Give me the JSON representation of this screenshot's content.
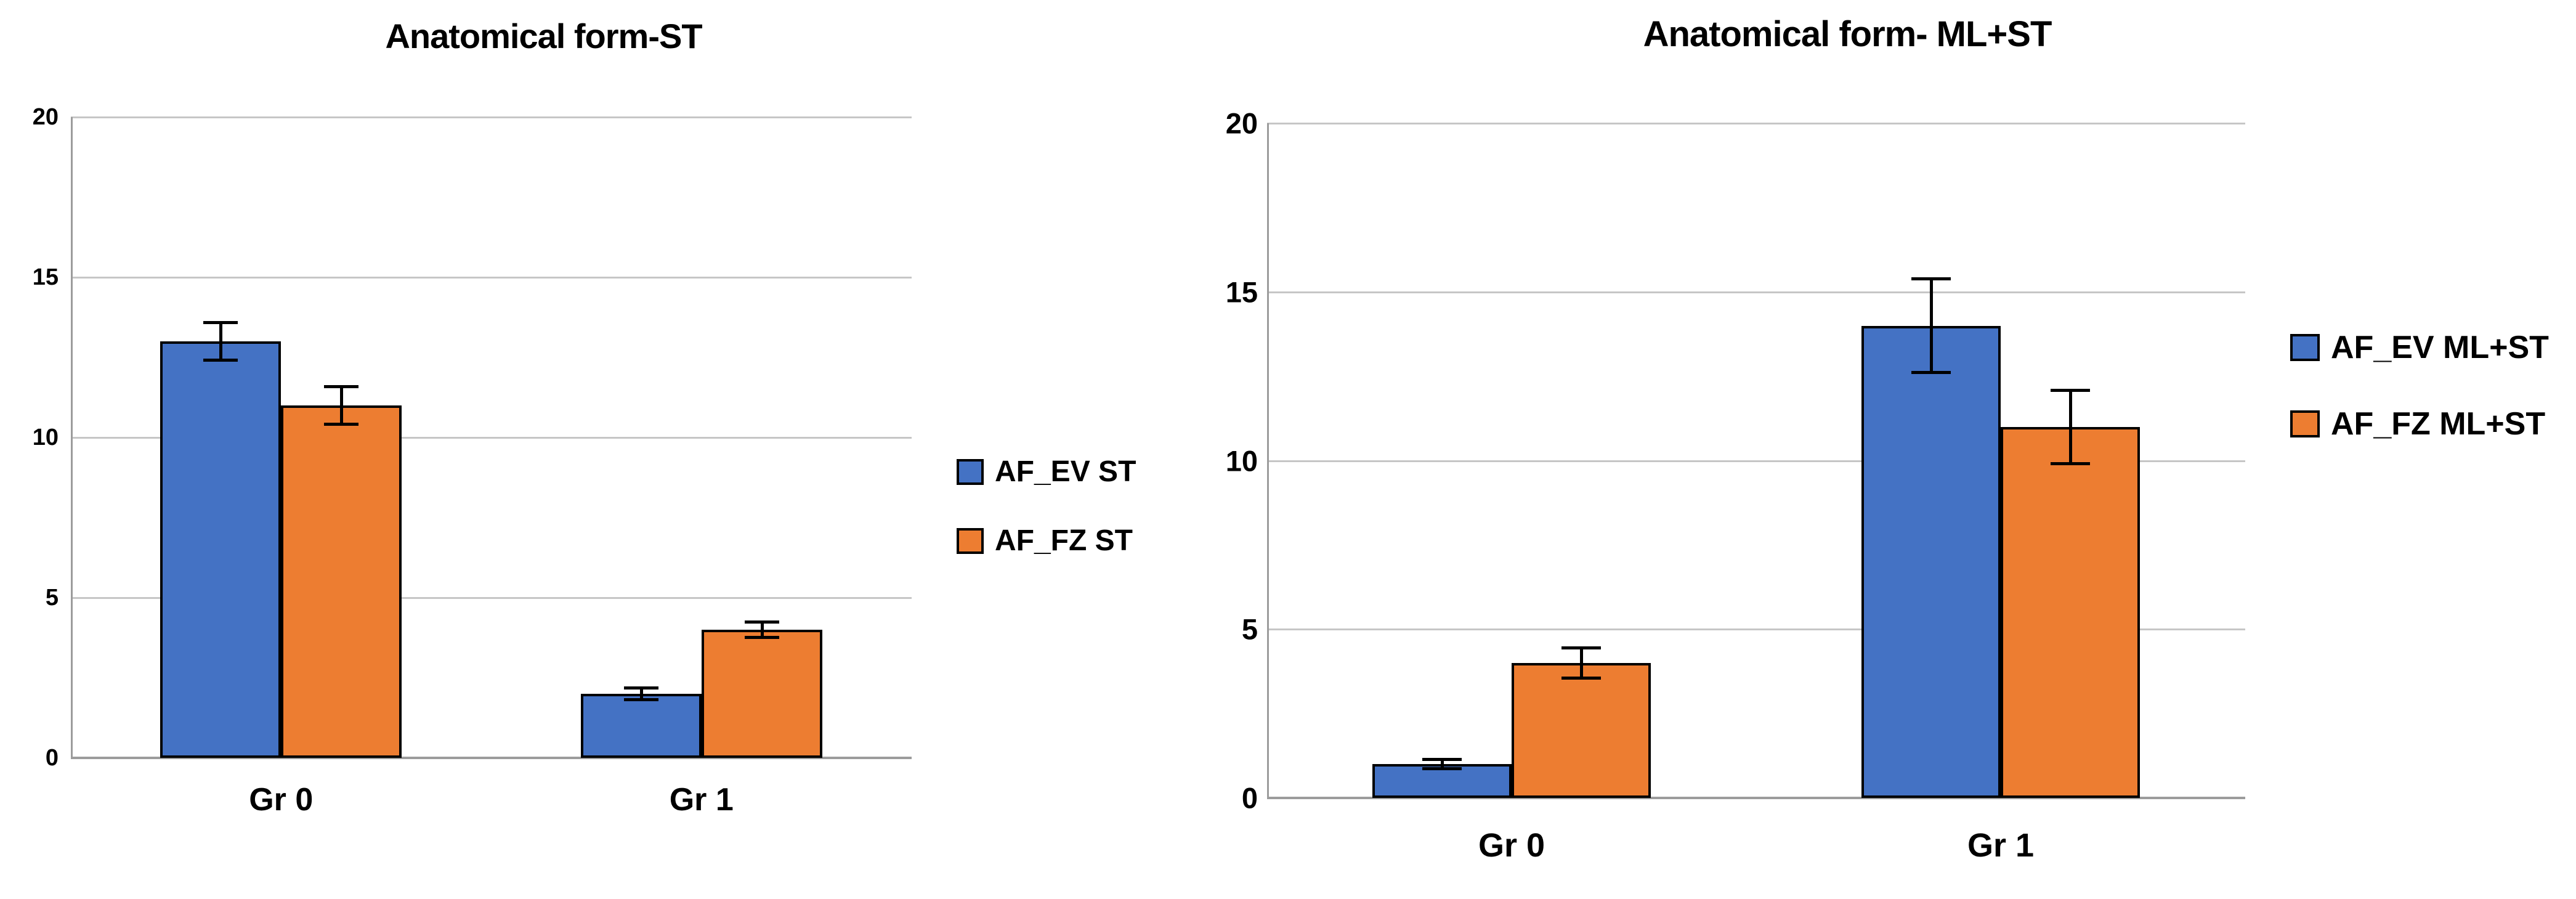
{
  "page": {
    "background": "#ffffff",
    "figure_description": "Two grouped bar charts with error bars"
  },
  "chart_data": [
    {
      "type": "bar",
      "title": "Anatomical form-ST",
      "categories": [
        "Gr 0",
        "Gr 1"
      ],
      "series": [
        {
          "name": "AF_EV ST",
          "color": "#4472C4",
          "values": [
            13,
            2
          ],
          "errors": [
            0.6,
            0.2
          ]
        },
        {
          "name": "AF_FZ ST",
          "color": "#ED7D31",
          "values": [
            11,
            4
          ],
          "errors": [
            0.6,
            0.25
          ]
        }
      ],
      "xlabel": "",
      "ylabel": "",
      "ylim": [
        0,
        20
      ],
      "yticks": [
        "0",
        "5",
        "10",
        "15",
        "20"
      ],
      "grid": true,
      "error_bars": true,
      "legend_position": "right",
      "colors": {
        "gridline": "#c6c6c6",
        "axis": "#9c9c9c",
        "bar_outline": "#000000",
        "text": "#000000",
        "background": "#ffffff"
      }
    },
    {
      "type": "bar",
      "title": "Anatomical form- ML+ST",
      "categories": [
        "Gr 0",
        "Gr 1"
      ],
      "series": [
        {
          "name": "AF_EV ML+ST",
          "color": "#4472C4",
          "values": [
            1,
            14
          ],
          "errors": [
            0.15,
            1.4
          ]
        },
        {
          "name": "AF_FZ ML+ST",
          "color": "#ED7D31",
          "values": [
            4,
            11
          ],
          "errors": [
            0.45,
            1.1
          ]
        }
      ],
      "xlabel": "",
      "ylabel": "",
      "ylim": [
        0,
        20
      ],
      "yticks": [
        "0",
        "5",
        "10",
        "15",
        "20"
      ],
      "grid": true,
      "error_bars": true,
      "legend_position": "right",
      "colors": {
        "gridline": "#c6c6c6",
        "axis": "#9c9c9c",
        "bar_outline": "#000000",
        "text": "#000000",
        "background": "#ffffff"
      }
    }
  ]
}
